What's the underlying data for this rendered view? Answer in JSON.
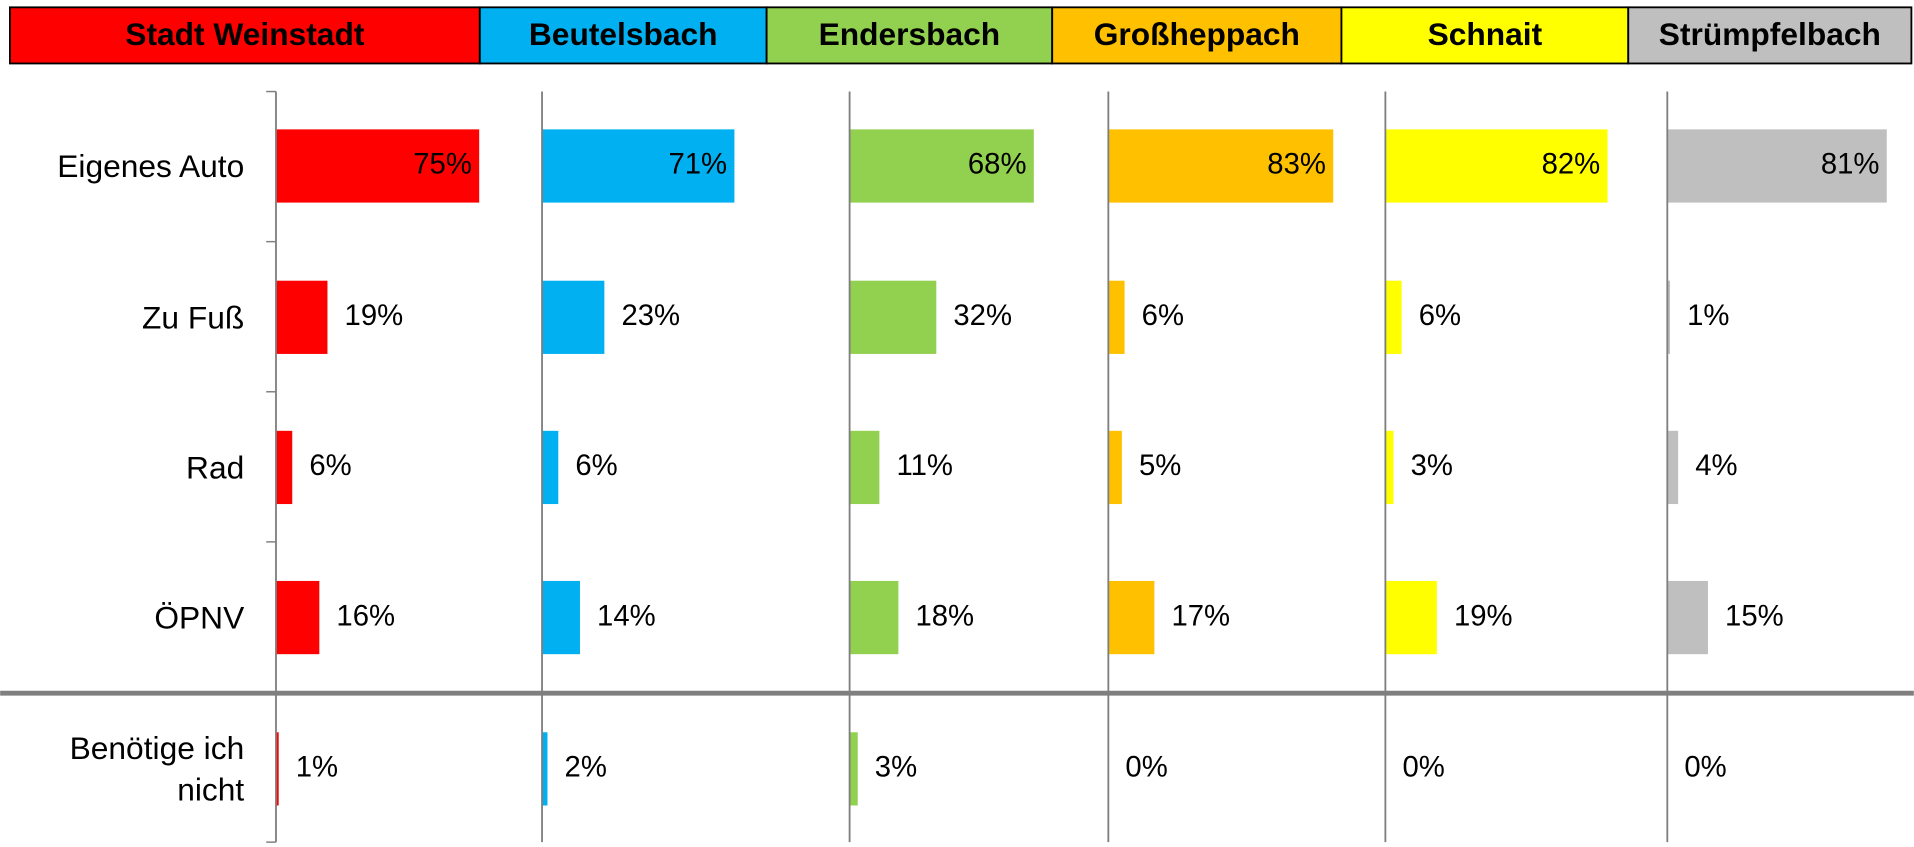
{
  "chart_data": {
    "type": "bar",
    "categories": [
      "Eigenes Auto",
      "Zu Fuß",
      "Rad",
      "ÖPNV",
      "Benötige ich nicht"
    ],
    "series": [
      {
        "name": "Stadt Weinstadt",
        "color": "#ff0000",
        "values": [
          75,
          19,
          6,
          16,
          1
        ],
        "value_labels": [
          "75%",
          "19%",
          "6%",
          "16%",
          "1%"
        ]
      },
      {
        "name": "Beutelsbach",
        "color": "#00b0f0",
        "values": [
          71,
          23,
          6,
          14,
          2
        ],
        "value_labels": [
          "71%",
          "23%",
          "6%",
          "14%",
          "2%"
        ]
      },
      {
        "name": "Endersbach",
        "color": "#92d050",
        "values": [
          68,
          32,
          11,
          18,
          3
        ],
        "value_labels": [
          "68%",
          "32%",
          "11%",
          "18%",
          "3%"
        ]
      },
      {
        "name": "Großheppach",
        "color": "#ffc000",
        "values": [
          83,
          6,
          5,
          17,
          0
        ],
        "value_labels": [
          "83%",
          "6%",
          "5%",
          "17%",
          "0%"
        ]
      },
      {
        "name": "Schnait",
        "color": "#ffff00",
        "values": [
          82,
          6,
          3,
          19,
          0
        ],
        "value_labels": [
          "82%",
          "6%",
          "3%",
          "19%",
          "0%"
        ]
      },
      {
        "name": "Strümpfelbach",
        "color": "#bfbfbf",
        "values": [
          81,
          1,
          4,
          15,
          0
        ],
        "value_labels": [
          "81%",
          "1%",
          "4%",
          "15%",
          "0%"
        ]
      }
    ]
  }
}
